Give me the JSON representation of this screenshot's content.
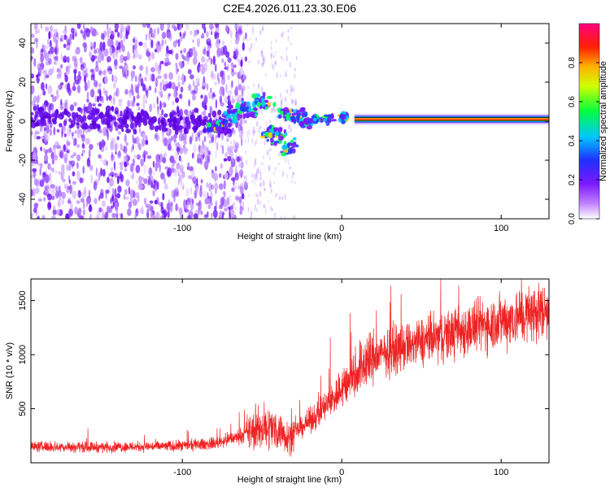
{
  "title": "C2E4.2026.011.23.30.E06",
  "chart_data": [
    {
      "type": "heatmap",
      "id": "spectrogram",
      "xlabel": "Height of straight line (km)",
      "ylabel": "Frequency (Hz)",
      "xlim": [
        -195,
        130
      ],
      "ylim": [
        -50,
        50
      ],
      "xticks": [
        -100,
        0,
        100
      ],
      "xtick_labels": [
        "-100",
        "0",
        "100"
      ],
      "yticks": [
        -40,
        -20,
        0,
        20,
        40
      ],
      "ytick_labels": [
        "-40",
        "-20",
        "0",
        "20",
        "40"
      ],
      "colorbar": {
        "label": "Normalized spectral amplitude",
        "range": [
          0.0,
          1.0
        ],
        "ticks": [
          0.0,
          0.2,
          0.4,
          0.6,
          0.8
        ],
        "tick_labels": [
          "0.0",
          "0.2",
          "0.4",
          "0.6",
          "0.8"
        ]
      },
      "carrier": {
        "frequency": 1,
        "start_km": 8,
        "end_km": 130
      },
      "noise_region": {
        "start_km": -195,
        "end_km": -65
      },
      "colors": {
        "noise": "#7a22ff",
        "carrier_core": "#ff1a1a",
        "carrier_edge": "#8d2bff",
        "axis": "#000000"
      }
    },
    {
      "type": "line",
      "id": "snr",
      "xlabel": "Height of straight line (km)",
      "ylabel": "SNR (10 * v/v)",
      "xlim": [
        -195,
        130
      ],
      "ylim": [
        0,
        1700
      ],
      "xticks": [
        -100,
        0,
        100
      ],
      "xtick_labels": [
        "-100",
        "0",
        "100"
      ],
      "yticks": [
        500,
        1000,
        1500
      ],
      "ytick_labels": [
        "500",
        "1000",
        "1500"
      ],
      "series": [
        {
          "name": "SNR",
          "color": "#ee2222",
          "trend_x": [
            -195,
            -150,
            -100,
            -80,
            -65,
            -55,
            -45,
            -40,
            -33,
            -25,
            -15,
            -5,
            5,
            15,
            30,
            50,
            70,
            90,
            110,
            130
          ],
          "trend_y": [
            150,
            145,
            155,
            180,
            240,
            300,
            330,
            300,
            240,
            330,
            450,
            600,
            780,
            940,
            1030,
            1120,
            1200,
            1280,
            1350,
            1420
          ]
        }
      ]
    }
  ]
}
